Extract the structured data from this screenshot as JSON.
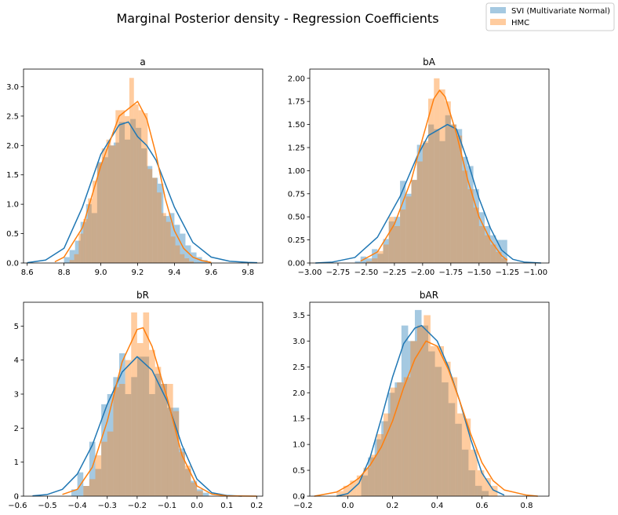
{
  "figure": {
    "suptitle": "Marginal Posterior density - Regression Coefficients"
  },
  "legend": {
    "placement": "top-right",
    "entries": [
      {
        "label": "SVI (Multivariate Normal)",
        "color": "#1f77b4"
      },
      {
        "label": "HMC",
        "color": "#ff7f0e"
      }
    ]
  },
  "colors": {
    "svi": "#1f77b4",
    "hmc": "#ff7f0e"
  },
  "chart_data": [
    {
      "type": "histogram-kde",
      "title": "a",
      "xlim": [
        8.58,
        9.88
      ],
      "ylim": [
        0,
        3.3
      ],
      "xticks": [
        8.6,
        8.8,
        9.0,
        9.2,
        9.4,
        9.6,
        9.8
      ],
      "xtick_labels": [
        "8.6",
        "8.8",
        "9.0",
        "9.2",
        "9.4",
        "9.6",
        "9.8"
      ],
      "yticks": [
        0,
        0.5,
        1.0,
        1.5,
        2.0,
        2.5,
        3.0
      ],
      "ytick_labels": [
        "0.0",
        "0.5",
        "1.0",
        "1.5",
        "2.0",
        "2.5",
        "3.0"
      ],
      "series": [
        {
          "name": "SVI (Multivariate Normal)",
          "color": "#1f77b4",
          "bin_edges": [
            8.8,
            8.83,
            8.86,
            8.89,
            8.92,
            8.95,
            8.98,
            9.01,
            9.04,
            9.07,
            9.1,
            9.13,
            9.16,
            9.19,
            9.22,
            9.25,
            9.28,
            9.31,
            9.34,
            9.37,
            9.4,
            9.43,
            9.46,
            9.49,
            9.52,
            9.55,
            9.58
          ],
          "counts": [
            0.1,
            0.22,
            0.38,
            0.7,
            1.0,
            0.85,
            1.72,
            1.8,
            2.0,
            2.05,
            2.4,
            2.1,
            2.45,
            2.3,
            1.95,
            1.65,
            1.45,
            1.35,
            0.8,
            0.85,
            0.65,
            0.5,
            0.3,
            0.18,
            0.1,
            0.05
          ],
          "kde": {
            "x": [
              8.6,
              8.7,
              8.8,
              8.9,
              9.0,
              9.1,
              9.15,
              9.2,
              9.25,
              9.3,
              9.4,
              9.5,
              9.6,
              9.7,
              9.8,
              9.85
            ],
            "y": [
              0.005,
              0.05,
              0.25,
              0.95,
              1.85,
              2.35,
              2.4,
              2.15,
              2.0,
              1.75,
              0.95,
              0.35,
              0.1,
              0.03,
              0.01,
              0.005
            ]
          }
        },
        {
          "name": "HMC",
          "color": "#ff7f0e",
          "bin_edges": [
            8.83,
            8.855,
            8.88,
            8.905,
            8.93,
            8.955,
            8.98,
            9.005,
            9.03,
            9.055,
            9.08,
            9.105,
            9.13,
            9.155,
            9.18,
            9.205,
            9.23,
            9.255,
            9.28,
            9.305,
            9.33,
            9.355,
            9.38,
            9.405,
            9.43,
            9.455,
            9.48,
            9.505
          ],
          "counts": [
            0.05,
            0.15,
            0.5,
            0.75,
            1.1,
            1.4,
            1.7,
            1.95,
            2.1,
            2.0,
            2.6,
            2.6,
            2.5,
            3.15,
            2.7,
            2.6,
            2.55,
            1.6,
            1.45,
            1.2,
            0.85,
            0.7,
            0.45,
            0.3,
            0.15,
            0.08,
            0.03
          ],
          "kde": {
            "x": [
              8.75,
              8.8,
              8.9,
              9.0,
              9.1,
              9.2,
              9.25,
              9.3,
              9.35,
              9.4,
              9.45,
              9.5,
              9.55,
              9.6
            ],
            "y": [
              0.02,
              0.1,
              0.6,
              1.65,
              2.5,
              2.75,
              2.45,
              1.85,
              1.1,
              0.55,
              0.25,
              0.1,
              0.04,
              0.01
            ]
          }
        }
      ]
    },
    {
      "type": "histogram-kde",
      "title": "bA",
      "xlim": [
        -3.0,
        -0.88
      ],
      "ylim": [
        0,
        2.1
      ],
      "xticks": [
        -3.0,
        -2.75,
        -2.5,
        -2.25,
        -2.0,
        -1.75,
        -1.5,
        -1.25,
        -1.0
      ],
      "xtick_labels": [
        "−3.00",
        "−2.75",
        "−2.50",
        "−2.25",
        "−2.00",
        "−1.75",
        "−1.50",
        "−1.25",
        "−1.00"
      ],
      "yticks": [
        0,
        0.25,
        0.5,
        0.75,
        1.0,
        1.25,
        1.5,
        1.75,
        2.0
      ],
      "ytick_labels": [
        "0.00",
        "0.25",
        "0.50",
        "0.75",
        "1.00",
        "1.25",
        "1.50",
        "1.75",
        "2.00"
      ],
      "series": [
        {
          "name": "SVI (Multivariate Normal)",
          "color": "#1f77b4",
          "bin_edges": [
            -2.6,
            -2.55,
            -2.5,
            -2.45,
            -2.4,
            -2.35,
            -2.3,
            -2.25,
            -2.2,
            -2.15,
            -2.1,
            -2.05,
            -2.0,
            -1.95,
            -1.9,
            -1.85,
            -1.8,
            -1.75,
            -1.7,
            -1.65,
            -1.6,
            -1.55,
            -1.5,
            -1.45,
            -1.4,
            -1.35,
            -1.3,
            -1.25
          ],
          "counts": [
            0.02,
            0.07,
            0.05,
            0.15,
            0.1,
            0.26,
            0.45,
            0.5,
            0.89,
            0.75,
            0.9,
            1.28,
            1.3,
            1.5,
            1.45,
            1.32,
            1.6,
            1.5,
            1.45,
            1.15,
            1.05,
            0.8,
            0.55,
            0.4,
            0.3,
            0.25,
            0.25
          ],
          "kde": {
            "x": [
              -2.95,
              -2.8,
              -2.6,
              -2.4,
              -2.2,
              -2.05,
              -1.95,
              -1.85,
              -1.78,
              -1.7,
              -1.6,
              -1.5,
              -1.4,
              -1.3,
              -1.2,
              -1.1,
              -0.95
            ],
            "y": [
              0.0,
              0.01,
              0.06,
              0.28,
              0.72,
              1.15,
              1.38,
              1.45,
              1.5,
              1.45,
              1.1,
              0.7,
              0.38,
              0.14,
              0.04,
              0.01,
              0.0
            ]
          }
        },
        {
          "name": "HMC",
          "color": "#ff7f0e",
          "bin_edges": [
            -2.5,
            -2.45,
            -2.4,
            -2.35,
            -2.3,
            -2.25,
            -2.2,
            -2.15,
            -2.1,
            -2.05,
            -2.0,
            -1.95,
            -1.9,
            -1.85,
            -1.8,
            -1.75,
            -1.7,
            -1.65,
            -1.6,
            -1.55,
            -1.5,
            -1.45,
            -1.4,
            -1.35,
            -1.3,
            -1.25
          ],
          "counts": [
            0.02,
            0.05,
            0.13,
            0.2,
            0.5,
            0.4,
            0.58,
            0.72,
            0.9,
            1.1,
            1.32,
            1.78,
            2.0,
            1.88,
            1.75,
            1.5,
            1.38,
            1.0,
            0.8,
            0.6,
            0.4,
            0.3,
            0.2,
            0.12,
            0.05
          ],
          "kde": {
            "x": [
              -2.55,
              -2.4,
              -2.25,
              -2.1,
              -2.0,
              -1.9,
              -1.85,
              -1.8,
              -1.7,
              -1.6,
              -1.5,
              -1.4,
              -1.3,
              -1.25
            ],
            "y": [
              0.02,
              0.12,
              0.42,
              0.9,
              1.35,
              1.78,
              1.87,
              1.8,
              1.4,
              0.9,
              0.5,
              0.25,
              0.08,
              0.03
            ]
          }
        }
      ]
    },
    {
      "type": "histogram-kde",
      "title": "bR",
      "xlim": [
        -0.58,
        0.22
      ],
      "ylim": [
        0,
        5.7
      ],
      "xticks": [
        -0.6,
        -0.5,
        -0.4,
        -0.3,
        -0.2,
        -0.1,
        0.0,
        0.1,
        0.2
      ],
      "xtick_labels": [
        "−0.6",
        "−0.5",
        "−0.4",
        "−0.3",
        "−0.2",
        "−0.1",
        "0.0",
        "0.1",
        "0.2"
      ],
      "yticks": [
        0,
        1,
        2,
        3,
        4,
        5
      ],
      "ytick_labels": [
        "0",
        "1",
        "2",
        "3",
        "4",
        "5"
      ],
      "series": [
        {
          "name": "SVI (Multivariate Normal)",
          "color": "#1f77b4",
          "bin_edges": [
            -0.42,
            -0.4,
            -0.38,
            -0.36,
            -0.34,
            -0.32,
            -0.3,
            -0.28,
            -0.26,
            -0.24,
            -0.22,
            -0.2,
            -0.18,
            -0.16,
            -0.14,
            -0.12,
            -0.1,
            -0.08,
            -0.06,
            -0.04,
            -0.02,
            0.0,
            0.02,
            0.04
          ],
          "counts": [
            0.2,
            0.7,
            0.3,
            1.6,
            0.8,
            2.7,
            3.0,
            3.5,
            4.2,
            3.0,
            3.5,
            4.1,
            4.1,
            3.0,
            3.6,
            3.3,
            2.6,
            2.6,
            1.4,
            0.8,
            0.45,
            0.2,
            0.1
          ],
          "kde": {
            "x": [
              -0.55,
              -0.5,
              -0.45,
              -0.4,
              -0.35,
              -0.3,
              -0.25,
              -0.2,
              -0.15,
              -0.1,
              -0.05,
              0.0,
              0.05,
              0.1,
              0.15
            ],
            "y": [
              0.01,
              0.05,
              0.2,
              0.65,
              1.5,
              2.7,
              3.65,
              4.1,
              3.7,
              2.8,
              1.5,
              0.5,
              0.1,
              0.02,
              0.0
            ]
          }
        },
        {
          "name": "HMC",
          "color": "#ff7f0e",
          "bin_edges": [
            -0.38,
            -0.36,
            -0.34,
            -0.32,
            -0.3,
            -0.28,
            -0.26,
            -0.24,
            -0.22,
            -0.2,
            -0.18,
            -0.16,
            -0.14,
            -0.12,
            -0.1,
            -0.08,
            -0.06,
            -0.04,
            -0.02,
            0.0,
            0.02
          ],
          "counts": [
            0.3,
            0.5,
            1.2,
            1.6,
            1.9,
            3.2,
            3.3,
            4.0,
            5.4,
            4.5,
            5.4,
            4.3,
            3.8,
            3.3,
            3.3,
            2.5,
            1.3,
            0.9,
            0.4,
            0.15
          ],
          "kde": {
            "x": [
              -0.45,
              -0.4,
              -0.35,
              -0.3,
              -0.25,
              -0.2,
              -0.18,
              -0.15,
              -0.1,
              -0.05,
              0.0,
              0.05,
              0.1,
              0.2
            ],
            "y": [
              0.05,
              0.2,
              0.85,
              2.2,
              3.95,
              4.9,
              4.95,
              4.4,
              2.9,
              1.2,
              0.3,
              0.06,
              0.01,
              0.0
            ]
          }
        }
      ]
    },
    {
      "type": "histogram-kde",
      "title": "bAR",
      "xlim": [
        -0.17,
        0.9
      ],
      "ylim": [
        0,
        3.75
      ],
      "xticks": [
        -0.2,
        0.0,
        0.2,
        0.4,
        0.6,
        0.8
      ],
      "xtick_labels": [
        "−0.2",
        "0.0",
        "0.2",
        "0.4",
        "0.6",
        "0.8"
      ],
      "yticks": [
        0,
        0.5,
        1.0,
        1.5,
        2.0,
        2.5,
        3.0,
        3.5
      ],
      "ytick_labels": [
        "0.0",
        "0.5",
        "1.0",
        "1.5",
        "2.0",
        "2.5",
        "3.0",
        "3.5"
      ],
      "series": [
        {
          "name": "SVI (Multivariate Normal)",
          "color": "#1f77b4",
          "bin_edges": [
            0.06,
            0.09,
            0.12,
            0.15,
            0.18,
            0.21,
            0.24,
            0.27,
            0.3,
            0.33,
            0.36,
            0.39,
            0.42,
            0.45,
            0.48,
            0.51,
            0.54,
            0.57,
            0.6,
            0.63
          ],
          "counts": [
            0.4,
            0.75,
            1.1,
            1.45,
            2.0,
            2.2,
            3.3,
            3.0,
            3.6,
            3.3,
            2.8,
            2.5,
            2.2,
            1.8,
            1.4,
            0.9,
            0.5,
            0.2,
            0.1
          ],
          "kde": {
            "x": [
              -0.05,
              0.0,
              0.05,
              0.1,
              0.15,
              0.2,
              0.25,
              0.3,
              0.33,
              0.4,
              0.45,
              0.5,
              0.55,
              0.6,
              0.65,
              0.7
            ],
            "y": [
              0.0,
              0.05,
              0.25,
              0.75,
              1.5,
              2.3,
              2.95,
              3.25,
              3.3,
              3.0,
              2.5,
              1.85,
              1.1,
              0.45,
              0.12,
              0.02
            ]
          }
        },
        {
          "name": "HMC",
          "color": "#ff7f0e",
          "bin_edges": [
            -0.05,
            -0.02,
            0.01,
            0.04,
            0.07,
            0.1,
            0.13,
            0.16,
            0.19,
            0.22,
            0.25,
            0.28,
            0.31,
            0.34,
            0.37,
            0.4,
            0.43,
            0.46,
            0.49,
            0.52,
            0.55,
            0.58,
            0.61,
            0.64,
            0.67
          ],
          "counts": [
            0.1,
            0.2,
            0.3,
            0.4,
            0.55,
            0.8,
            1.2,
            1.6,
            2.1,
            2.2,
            2.3,
            3.0,
            3.3,
            3.5,
            2.9,
            2.9,
            2.6,
            2.3,
            1.6,
            1.5,
            0.9,
            0.5,
            0.35,
            0.2
          ],
          "kde": {
            "x": [
              -0.15,
              -0.05,
              0.0,
              0.05,
              0.1,
              0.15,
              0.2,
              0.25,
              0.3,
              0.35,
              0.4,
              0.45,
              0.5,
              0.55,
              0.6,
              0.65,
              0.7,
              0.8,
              0.85
            ],
            "y": [
              0.0,
              0.08,
              0.2,
              0.35,
              0.6,
              0.95,
              1.45,
              2.1,
              2.65,
              3.0,
              2.9,
              2.45,
              1.85,
              1.2,
              0.65,
              0.3,
              0.12,
              0.02,
              0.0
            ]
          }
        }
      ]
    }
  ]
}
